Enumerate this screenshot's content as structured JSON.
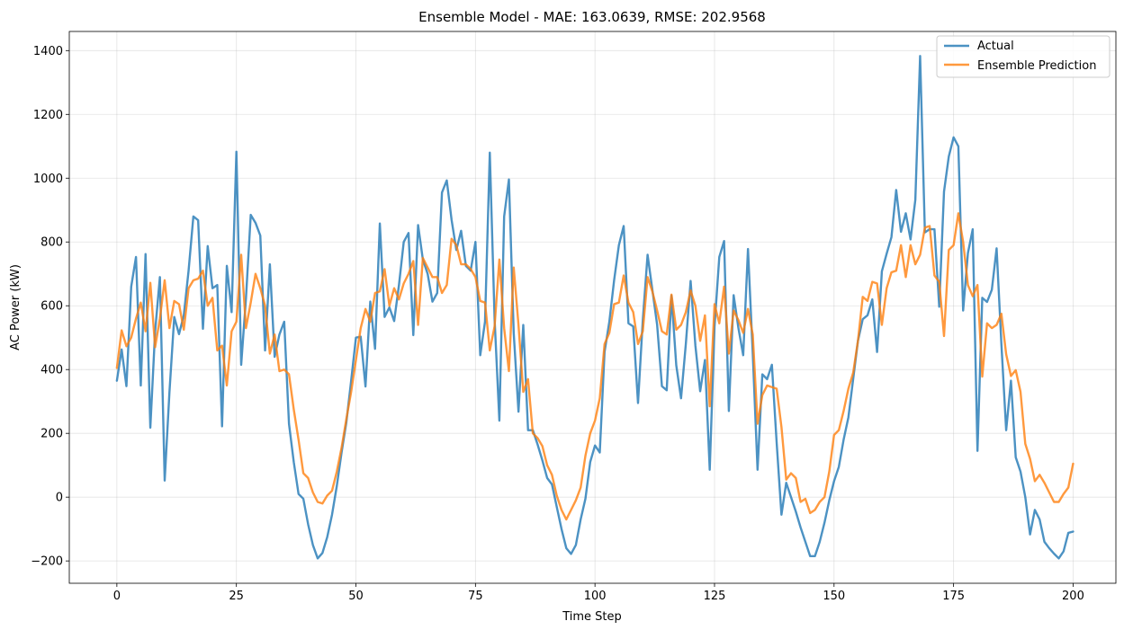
{
  "chart_data": {
    "type": "line",
    "title": "Ensemble Model - MAE: 163.0639, RMSE: 202.9568",
    "xlabel": "Time Step",
    "ylabel": "AC Power (kW)",
    "xlim": [
      -9.95,
      208.95
    ],
    "ylim": [
      -270,
      1460
    ],
    "xticks": [
      0,
      25,
      50,
      75,
      100,
      125,
      150,
      175,
      200
    ],
    "yticks": [
      -200,
      0,
      200,
      400,
      600,
      800,
      1000,
      1200,
      1400
    ],
    "ytick_labels": [
      "−200",
      "0",
      "200",
      "400",
      "600",
      "800",
      "1000",
      "1200",
      "1400"
    ],
    "grid": true,
    "legend": "top-right",
    "colors": {
      "actual": "#1f77b4",
      "prediction": "#ff7f0e"
    },
    "series": [
      {
        "name": "Actual",
        "color": "#1f77b4",
        "values": [
          365,
          463,
          348,
          660,
          753,
          350,
          762,
          218,
          520,
          690,
          52,
          330,
          565,
          511,
          570,
          710,
          880,
          868,
          528,
          787,
          655,
          665,
          222,
          725,
          580,
          1083,
          415,
          623,
          885,
          860,
          820,
          460,
          730,
          440,
          510,
          550,
          230,
          110,
          10,
          -5,
          -85,
          -150,
          -192,
          -175,
          -125,
          -55,
          35,
          140,
          235,
          365,
          500,
          503,
          347,
          613,
          465,
          858,
          565,
          595,
          552,
          665,
          800,
          828,
          508,
          853,
          745,
          700,
          613,
          640,
          955,
          993,
          870,
          775,
          835,
          725,
          710,
          800,
          445,
          550,
          1080,
          560,
          240,
          880,
          996,
          515,
          268,
          540,
          210,
          210,
          165,
          115,
          60,
          40,
          -30,
          -100,
          -160,
          -178,
          -150,
          -70,
          -5,
          110,
          162,
          140,
          455,
          550,
          680,
          790,
          850,
          545,
          535,
          295,
          555,
          760,
          650,
          540,
          348,
          335,
          632,
          413,
          310,
          480,
          678,
          475,
          332,
          430,
          86,
          535,
          753,
          803,
          270,
          633,
          530,
          445,
          778,
          450,
          86,
          385,
          370,
          415,
          170,
          -55,
          45,
          0,
          -45,
          -95,
          -140,
          -185,
          -185,
          -140,
          -80,
          -10,
          50,
          95,
          180,
          250,
          370,
          490,
          558,
          570,
          620,
          455,
          708,
          763,
          815,
          963,
          832,
          890,
          808,
          932,
          1383,
          830,
          840,
          840,
          597,
          958,
          1068,
          1128,
          1100,
          585,
          765,
          840,
          145,
          625,
          612,
          650,
          780,
          480,
          210,
          365,
          125,
          80,
          0,
          -117,
          -40,
          -70,
          -140,
          -160,
          -177,
          -192,
          -170,
          -112,
          -108
        ]
      },
      {
        "name": "Ensemble Prediction",
        "color": "#ff7f0e",
        "values": [
          405,
          523,
          473,
          500,
          560,
          610,
          520,
          672,
          470,
          560,
          680,
          530,
          615,
          605,
          525,
          655,
          680,
          685,
          710,
          600,
          625,
          460,
          475,
          350,
          520,
          550,
          760,
          530,
          610,
          700,
          655,
          600,
          450,
          510,
          395,
          400,
          385,
          275,
          180,
          75,
          60,
          15,
          -15,
          -20,
          5,
          20,
          80,
          155,
          245,
          330,
          430,
          530,
          590,
          550,
          640,
          645,
          715,
          600,
          655,
          620,
          670,
          700,
          740,
          540,
          750,
          720,
          690,
          690,
          640,
          665,
          810,
          790,
          730,
          730,
          715,
          690,
          615,
          610,
          460,
          535,
          745,
          530,
          395,
          720,
          540,
          330,
          370,
          200,
          185,
          160,
          100,
          70,
          5,
          -40,
          -70,
          -40,
          -10,
          30,
          130,
          200,
          240,
          310,
          480,
          515,
          605,
          610,
          695,
          610,
          580,
          480,
          520,
          690,
          645,
          585,
          520,
          510,
          635,
          525,
          540,
          580,
          648,
          600,
          490,
          570,
          285,
          605,
          545,
          660,
          450,
          585,
          555,
          515,
          590,
          510,
          230,
          320,
          350,
          345,
          340,
          220,
          55,
          75,
          60,
          -15,
          -5,
          -50,
          -40,
          -15,
          0,
          80,
          195,
          210,
          270,
          340,
          390,
          490,
          628,
          615,
          675,
          670,
          540,
          655,
          705,
          710,
          790,
          690,
          790,
          730,
          760,
          845,
          850,
          695,
          675,
          505,
          775,
          790,
          890,
          800,
          665,
          630,
          665,
          378,
          545,
          530,
          540,
          575,
          448,
          380,
          398,
          330,
          167,
          120,
          50,
          70,
          45,
          15,
          -15,
          -15,
          10,
          30,
          105
        ]
      }
    ]
  }
}
